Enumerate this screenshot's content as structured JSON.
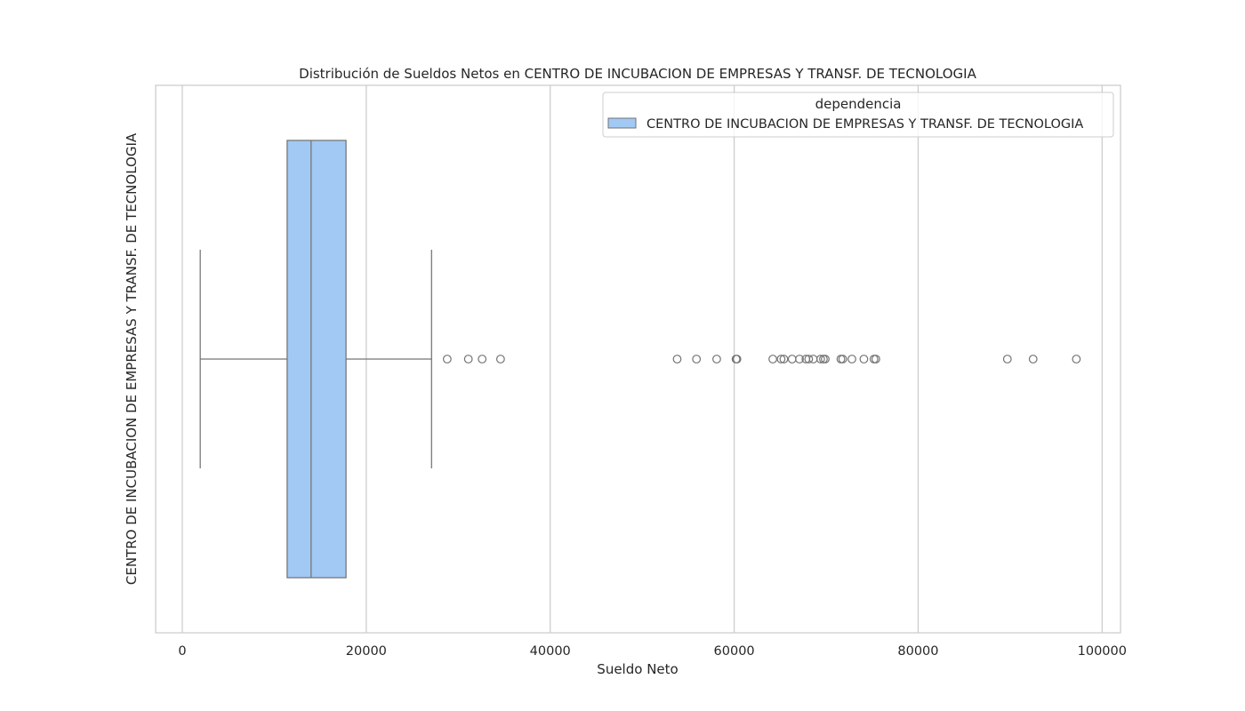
{
  "chart_data": {
    "type": "boxplot",
    "orientation": "horizontal",
    "title": "Distribución de Sueldos Netos en CENTRO DE INCUBACION DE EMPRESAS Y TRANSF. DE TECNOLOGIA",
    "xlabel": "Sueldo Neto",
    "ylabel": "CENTRO DE INCUBACION DE EMPRESAS Y TRANSF. DE TECNOLOGIA",
    "xlim": [
      -2900,
      102000
    ],
    "xticks": [
      0,
      20000,
      40000,
      60000,
      80000,
      100000
    ],
    "xtick_labels": [
      "0",
      "20000",
      "40000",
      "60000",
      "80000",
      "100000"
    ],
    "grid": "vertical",
    "legend": {
      "title": "dependencia",
      "placement": "top-right",
      "entries": [
        "CENTRO DE INCUBACION DE EMPRESAS Y TRANSF. DE TECNOLOGIA"
      ]
    },
    "colors": {
      "box": "#a1c9f4",
      "line": "#737373",
      "grid": "#cccccc",
      "spine": "#cccccc"
    },
    "series": [
      {
        "category": "CENTRO DE INCUBACION DE EMPRESAS Y TRANSF. DE TECNOLOGIA",
        "whisker_low": 1950,
        "q1": 11400,
        "median": 14000,
        "q3": 17800,
        "whisker_high": 27100,
        "outliers": [
          28800,
          31100,
          32600,
          34600,
          53800,
          55900,
          58100,
          60200,
          60300,
          64200,
          65100,
          65400,
          66300,
          67100,
          67800,
          68100,
          68600,
          69400,
          69700,
          69900,
          71600,
          71800,
          72800,
          74100,
          75200,
          75400,
          89700,
          92500,
          97200
        ]
      }
    ]
  }
}
